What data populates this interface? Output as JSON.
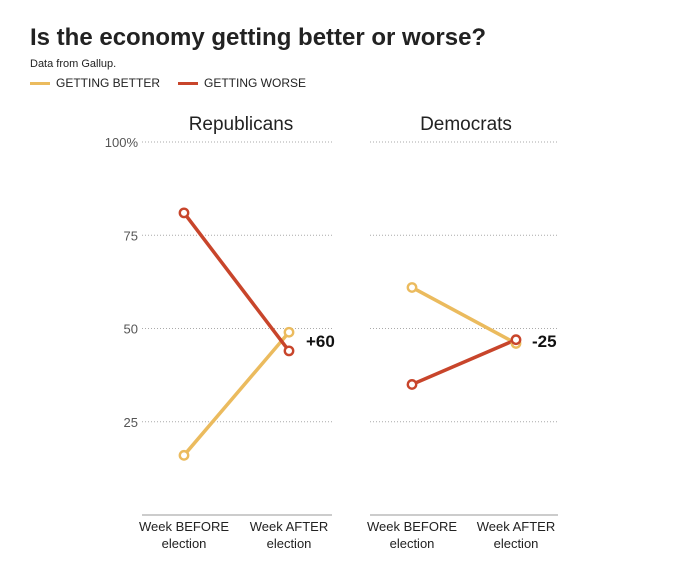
{
  "title": "Is the economy getting better or worse?",
  "source": "Data from Gallup.",
  "colors": {
    "better": "#ebbb5e",
    "worse": "#c8452b",
    "grid": "#aaaaaa",
    "axis": "#999999"
  },
  "chart_data": {
    "type": "line",
    "title": "Is the economy getting better or worse?",
    "legend": [
      {
        "key": "better",
        "label": "GETTING BETTER"
      },
      {
        "key": "worse",
        "label": "GETTING WORSE"
      }
    ],
    "ylim": [
      0,
      100
    ],
    "yticks": [
      {
        "value": 25,
        "label": "25"
      },
      {
        "value": 50,
        "label": "50"
      },
      {
        "value": 75,
        "label": "75"
      },
      {
        "value": 100,
        "label": "100%"
      }
    ],
    "categories": [
      [
        "Week BEFORE",
        "election"
      ],
      [
        "Week AFTER",
        "election"
      ]
    ],
    "panels": [
      {
        "name": "Republicans",
        "series": [
          {
            "key": "better",
            "name": "GETTING BETTER",
            "values": [
              16,
              49
            ]
          },
          {
            "key": "worse",
            "name": "GETTING WORSE",
            "values": [
              81,
              44
            ]
          }
        ],
        "annotation": "+60"
      },
      {
        "name": "Democrats",
        "series": [
          {
            "key": "better",
            "name": "GETTING BETTER",
            "values": [
              61,
              46
            ]
          },
          {
            "key": "worse",
            "name": "GETTING WORSE",
            "values": [
              35,
              47
            ]
          }
        ],
        "annotation": "-25"
      }
    ]
  }
}
